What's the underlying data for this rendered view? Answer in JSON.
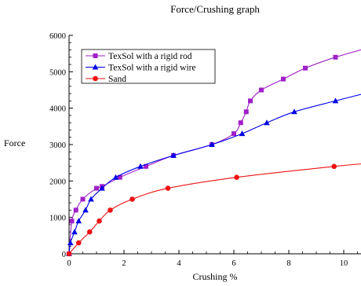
{
  "chart_data": {
    "type": "line",
    "title": "Force/Crushing graph",
    "xlabel": "Crushing %",
    "ylabel": "Force",
    "xlim": [
      -0.1,
      11
    ],
    "ylim": [
      0,
      6000
    ],
    "xticks": [
      0,
      2,
      4,
      6,
      8,
      10
    ],
    "yticks": [
      0,
      1000,
      2000,
      3000,
      4000,
      5000,
      6000
    ],
    "xtick_labels": [
      "0",
      "2",
      "4",
      "6",
      "8",
      "10"
    ],
    "ytick_labels": [
      "0",
      "1000",
      "2000",
      "3000",
      "4000",
      "5000",
      "6000"
    ],
    "grid": false,
    "legend_position": "top-left",
    "series": [
      {
        "name": "TexSol with a rigid rod",
        "color": "#a020c8",
        "marker": "square",
        "x": [
          0,
          0.1,
          0.25,
          0.5,
          1.0,
          1.2,
          1.85,
          2.8,
          3.8,
          5.2,
          6.0,
          6.25,
          6.45,
          6.6,
          7.0,
          7.8,
          8.6,
          9.7,
          11.0
        ],
        "y": [
          0,
          900,
          1200,
          1500,
          1800,
          1850,
          2100,
          2400,
          2700,
          3000,
          3300,
          3600,
          3900,
          4200,
          4500,
          4800,
          5100,
          5400,
          5680
        ]
      },
      {
        "name": "TexSol with a rigid wire",
        "color": "#0000e6",
        "marker": "triangle",
        "x": [
          0,
          0.05,
          0.2,
          0.35,
          0.6,
          0.8,
          1.2,
          1.7,
          2.6,
          3.8,
          5.2,
          6.3,
          7.2,
          8.2,
          9.7,
          11.0
        ],
        "y": [
          0,
          300,
          600,
          900,
          1200,
          1500,
          1800,
          2100,
          2400,
          2700,
          3000,
          3300,
          3600,
          3900,
          4200,
          4450
        ]
      },
      {
        "name": "Sand",
        "color": "#ee1111",
        "marker": "circle",
        "x": [
          0,
          0.35,
          0.75,
          1.1,
          1.5,
          2.3,
          3.6,
          6.1,
          9.65,
          11.0
        ],
        "y": [
          0,
          300,
          600,
          900,
          1200,
          1500,
          1800,
          2100,
          2400,
          2490
        ]
      }
    ]
  }
}
